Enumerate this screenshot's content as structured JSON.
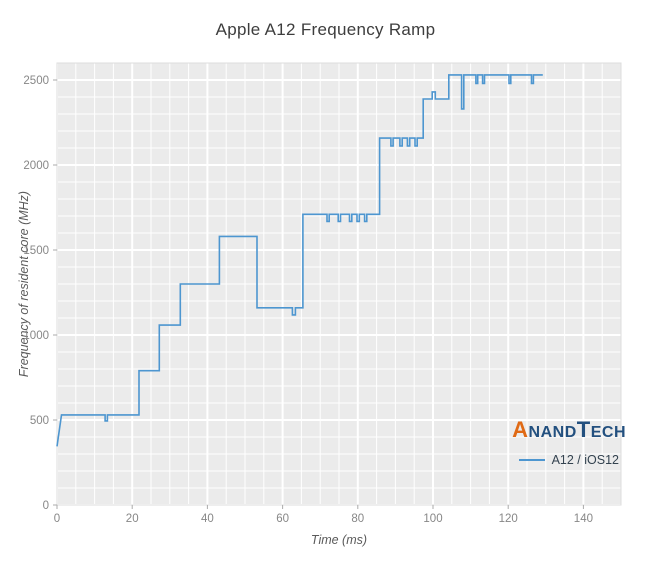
{
  "chart_data": {
    "type": "line",
    "title": "Apple A12 Frequency Ramp",
    "xlabel": "Time (ms)",
    "ylabel": "Frequency of resident core (MHz)",
    "xlim": [
      0,
      150
    ],
    "ylim": [
      0,
      2600
    ],
    "xticks": [
      0,
      20,
      40,
      60,
      80,
      100,
      120,
      140
    ],
    "yticks": [
      0,
      500,
      1000,
      1500,
      2000,
      2500
    ],
    "x_minor_step": 5,
    "y_minor_step": 100,
    "grid": true,
    "legend_position": "bottom-right",
    "plot_bg": "#ebebeb",
    "grid_color": "#ffffff",
    "line_color": "#4d96d0",
    "series": [
      {
        "name": "A12 / iOS12",
        "points": [
          [
            0,
            345
          ],
          [
            1.2,
            530
          ],
          [
            12.8,
            530
          ],
          [
            12.8,
            495
          ],
          [
            13.4,
            495
          ],
          [
            13.4,
            530
          ],
          [
            21.8,
            530
          ],
          [
            21.8,
            790
          ],
          [
            27.2,
            790
          ],
          [
            27.2,
            1058
          ],
          [
            32.8,
            1058
          ],
          [
            32.8,
            1300
          ],
          [
            43.2,
            1300
          ],
          [
            43.2,
            1580
          ],
          [
            53.2,
            1580
          ],
          [
            53.2,
            1160
          ],
          [
            62.6,
            1160
          ],
          [
            62.6,
            1118
          ],
          [
            63.4,
            1118
          ],
          [
            63.4,
            1160
          ],
          [
            65.4,
            1160
          ],
          [
            65.4,
            1710
          ],
          [
            71.8,
            1710
          ],
          [
            71.8,
            1668
          ],
          [
            72.4,
            1668
          ],
          [
            72.4,
            1710
          ],
          [
            74.8,
            1710
          ],
          [
            74.8,
            1668
          ],
          [
            75.4,
            1668
          ],
          [
            75.4,
            1710
          ],
          [
            77.8,
            1710
          ],
          [
            77.8,
            1668
          ],
          [
            78.4,
            1668
          ],
          [
            78.4,
            1710
          ],
          [
            79.8,
            1710
          ],
          [
            79.8,
            1668
          ],
          [
            80.4,
            1668
          ],
          [
            80.4,
            1710
          ],
          [
            81.8,
            1710
          ],
          [
            81.8,
            1668
          ],
          [
            82.4,
            1668
          ],
          [
            82.4,
            1710
          ],
          [
            85.8,
            1710
          ],
          [
            85.8,
            2158
          ],
          [
            88.8,
            2158
          ],
          [
            88.8,
            2112
          ],
          [
            89.4,
            2112
          ],
          [
            89.4,
            2158
          ],
          [
            91.2,
            2158
          ],
          [
            91.2,
            2112
          ],
          [
            91.8,
            2112
          ],
          [
            91.8,
            2158
          ],
          [
            93.2,
            2158
          ],
          [
            93.2,
            2112
          ],
          [
            93.8,
            2112
          ],
          [
            93.8,
            2158
          ],
          [
            95.2,
            2158
          ],
          [
            95.2,
            2112
          ],
          [
            95.8,
            2112
          ],
          [
            95.8,
            2158
          ],
          [
            97.4,
            2158
          ],
          [
            97.4,
            2388
          ],
          [
            99.8,
            2388
          ],
          [
            99.8,
            2430
          ],
          [
            100.6,
            2430
          ],
          [
            100.6,
            2388
          ],
          [
            104.2,
            2388
          ],
          [
            104.2,
            2530
          ],
          [
            107.6,
            2530
          ],
          [
            107.6,
            2330
          ],
          [
            108.2,
            2330
          ],
          [
            108.2,
            2530
          ],
          [
            111.4,
            2530
          ],
          [
            111.4,
            2480
          ],
          [
            111.9,
            2480
          ],
          [
            111.9,
            2530
          ],
          [
            113.2,
            2530
          ],
          [
            113.2,
            2480
          ],
          [
            113.7,
            2480
          ],
          [
            113.7,
            2530
          ],
          [
            120.2,
            2530
          ],
          [
            120.2,
            2480
          ],
          [
            120.7,
            2480
          ],
          [
            120.7,
            2530
          ],
          [
            126.2,
            2530
          ],
          [
            126.2,
            2480
          ],
          [
            126.7,
            2480
          ],
          [
            126.7,
            2530
          ],
          [
            129.2,
            2530
          ]
        ]
      }
    ]
  },
  "logo": {
    "a": "A",
    "nand": "NAND",
    "t": "T",
    "ech": "ECH"
  }
}
